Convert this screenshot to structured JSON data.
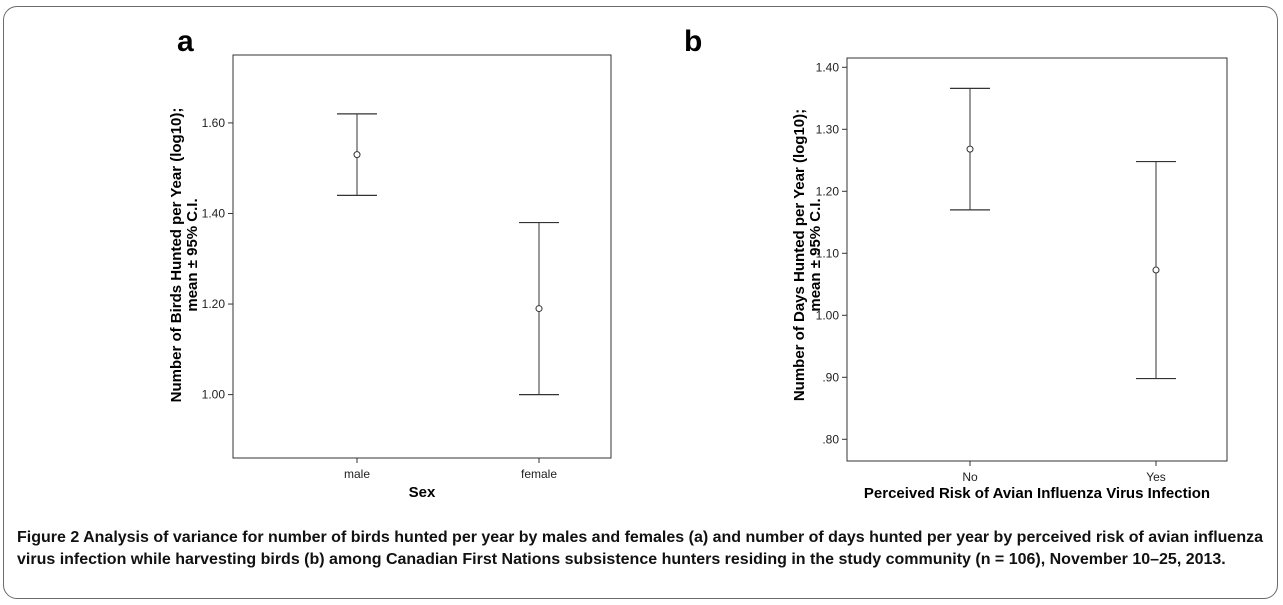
{
  "chart_data": [
    {
      "type": "errorbar",
      "panel_label": "a",
      "xlabel": "Sex",
      "ylabel_line1": "Number of Birds Hunted per Year (log10);",
      "ylabel_line2": "mean ± 95% C.I.",
      "categories": [
        "male",
        "female"
      ],
      "mean": [
        1.53,
        1.19
      ],
      "lower": [
        1.44,
        1.0
      ],
      "upper": [
        1.62,
        1.38
      ],
      "ylim": [
        0.86,
        1.75
      ],
      "yticks": [
        1.0,
        1.2,
        1.4,
        1.6
      ],
      "ytick_labels": [
        "1.00",
        "1.20",
        "1.40",
        "1.60"
      ]
    },
    {
      "type": "errorbar",
      "panel_label": "b",
      "xlabel": "Perceived Risk of Avian Influenza Virus Infection",
      "ylabel_line1": "Number of Days Hunted per Year (log10);",
      "ylabel_line2": "mean ± 95% C.I.",
      "categories": [
        "No",
        "Yes"
      ],
      "mean": [
        1.268,
        1.073
      ],
      "lower": [
        1.17,
        0.898
      ],
      "upper": [
        1.366,
        1.248
      ],
      "ylim": [
        0.765,
        1.415
      ],
      "yticks": [
        0.8,
        0.9,
        1.0,
        1.1,
        1.2,
        1.3,
        1.4
      ],
      "ytick_labels": [
        ".80",
        ".90",
        "1.00",
        "1.10",
        "1.20",
        "1.30",
        "1.40"
      ]
    }
  ],
  "caption": {
    "label": "Figure 2",
    "text": " Analysis of variance for number of birds hunted per year by males and females (a) and number of days hunted per year by perceived risk of avian influenza virus infection while harvesting birds (b) among Canadian First Nations subsistence hunters residing in the study community (n = 106), November 10–25, 2013."
  }
}
